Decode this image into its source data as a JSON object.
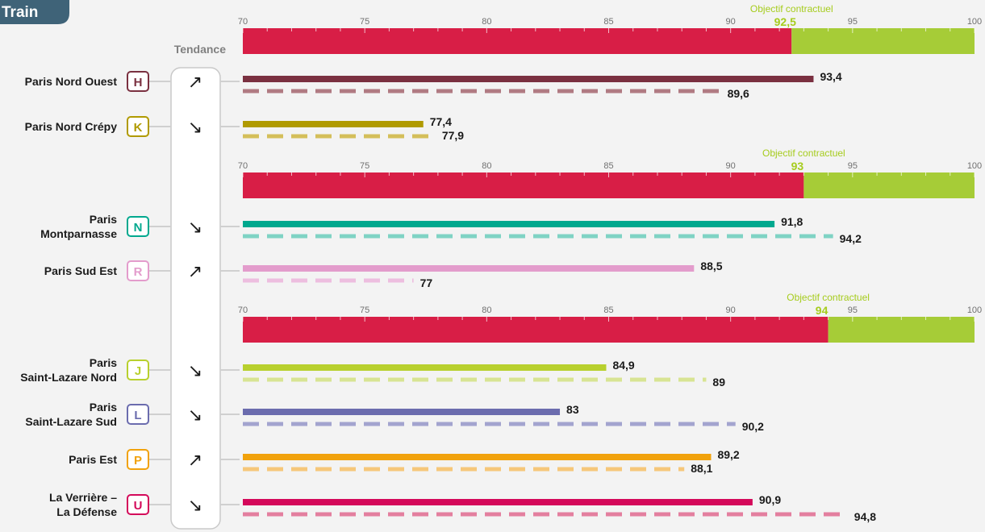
{
  "title": "Train",
  "trend_header": "Tendance",
  "objective_label": "Objectif contractuel",
  "chart_data": {
    "type": "bar",
    "xlim": [
      70,
      100
    ],
    "ticks": [
      "70",
      "75",
      "80",
      "85",
      "90",
      "95",
      "100"
    ],
    "panels": [
      {
        "objective": 92.5,
        "objective_text": "92,5",
        "lines": [
          {
            "name": [
              "Paris Nord Ouest"
            ],
            "letter": "H",
            "color": "#7a3040",
            "dashed_color": "#b07a82",
            "value": 93.4,
            "value_text": "93,4",
            "previous": 89.6,
            "previous_text": "89,6",
            "trend": "up",
            "trend_symbol": "↗"
          },
          {
            "name": [
              "Paris Nord Crépy"
            ],
            "letter": "K",
            "color": "#b09a00",
            "dashed_color": "#d4bf5a",
            "value": 77.4,
            "value_text": "77,4",
            "previous": 77.9,
            "previous_text": "77,9",
            "trend": "down",
            "trend_symbol": "↘"
          }
        ]
      },
      {
        "objective": 93,
        "objective_text": "93",
        "lines": [
          {
            "name": [
              "Paris",
              "Montparnasse"
            ],
            "letter": "N",
            "color": "#00a88e",
            "dashed_color": "#7fd3c4",
            "value": 91.8,
            "value_text": "91,8",
            "previous": 94.2,
            "previous_text": "94,2",
            "trend": "down",
            "trend_symbol": "↘"
          },
          {
            "name": [
              "Paris Sud Est"
            ],
            "letter": "R",
            "color": "#e39ccc",
            "dashed_color": "#edbedf",
            "value": 88.5,
            "value_text": "88,5",
            "previous": 77,
            "previous_text": "77",
            "trend": "up",
            "trend_symbol": "↗"
          }
        ]
      },
      {
        "objective": 94,
        "objective_text": "94",
        "lines": [
          {
            "name": [
              "Paris",
              "Saint-Lazare Nord"
            ],
            "letter": "J",
            "color": "#b8d02e",
            "dashed_color": "#d8e493",
            "value": 84.9,
            "value_text": "84,9",
            "previous": 89,
            "previous_text": "89",
            "trend": "down",
            "trend_symbol": "↘"
          },
          {
            "name": [
              "Paris",
              "Saint-Lazare Sud"
            ],
            "letter": "L",
            "color": "#6b6cae",
            "dashed_color": "#a3a4cf",
            "value": 83,
            "value_text": "83",
            "previous": 90.2,
            "previous_text": "90,2",
            "trend": "down",
            "trend_symbol": "↘"
          },
          {
            "name": [
              "Paris Est"
            ],
            "letter": "P",
            "color": "#f1a20c",
            "dashed_color": "#f6c77a",
            "value": 89.2,
            "value_text": "89,2",
            "previous": 88.1,
            "previous_text": "88,1",
            "trend": "up",
            "trend_symbol": "↗"
          },
          {
            "name": [
              "La Verrière –",
              "La Défense"
            ],
            "letter": "U",
            "color": "#d4095a",
            "dashed_color": "#e37f9f",
            "value": 90.9,
            "value_text": "90,9",
            "previous": 94.8,
            "previous_text": "94,8",
            "trend": "down",
            "trend_symbol": "↘"
          }
        ]
      }
    ],
    "colors": {
      "below_objective": "#d81e46",
      "above_objective": "#a6cc37",
      "badge": "#3f6378"
    }
  }
}
